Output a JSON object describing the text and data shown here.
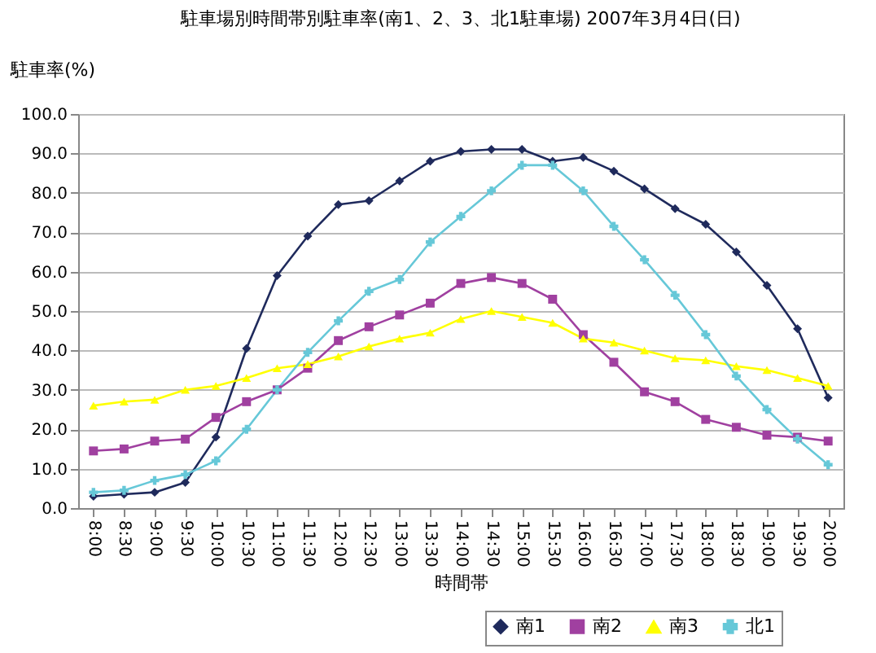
{
  "chart_data": {
    "type": "line",
    "title": "駐車場別時間帯別駐車率(南1、2、3、北1駐車場)  2007年3月4日(日)",
    "xlabel": "時間帯",
    "ylabel": "駐車率(%)",
    "categories": [
      "8:00",
      "8:30",
      "9:00",
      "9:30",
      "10:00",
      "10:30",
      "11:00",
      "11:30",
      "12:00",
      "12:30",
      "13:00",
      "13:30",
      "14:00",
      "14:30",
      "15:00",
      "15:30",
      "16:00",
      "16:30",
      "17:00",
      "17:30",
      "18:00",
      "18:30",
      "19:00",
      "19:30",
      "20:00"
    ],
    "series": [
      {
        "name": "南1",
        "color": "#1f2a5c",
        "marker": "diamond",
        "values": [
          3,
          3.5,
          4,
          6.5,
          18,
          40.5,
          59,
          69,
          77,
          78,
          83,
          88,
          90.5,
          91,
          91,
          88,
          89,
          85.5,
          81,
          76,
          72,
          65,
          56.5,
          45.5,
          28
        ]
      },
      {
        "name": "南2",
        "color": "#a040a0",
        "marker": "square",
        "values": [
          14.5,
          15,
          17,
          17.5,
          23,
          27,
          30,
          35.5,
          42.5,
          46,
          49,
          52,
          57,
          58.5,
          57,
          53,
          44,
          37,
          29.5,
          27,
          22.5,
          20.5,
          18.5,
          18,
          17
        ]
      },
      {
        "name": "南3",
        "color": "#ffff00",
        "marker": "triangle",
        "values": [
          26,
          27,
          27.5,
          30,
          31,
          33,
          35.5,
          36.5,
          38.5,
          41,
          43,
          44.5,
          48,
          50,
          48.5,
          47,
          43,
          42,
          40,
          38,
          37.5,
          36,
          35,
          33,
          31
        ]
      },
      {
        "name": "北1",
        "color": "#66c8d8",
        "marker": "cross",
        "values": [
          4,
          4.5,
          7,
          8.5,
          12,
          20,
          30,
          39.5,
          47.5,
          55,
          58,
          67.5,
          74,
          80.5,
          87,
          87,
          80.5,
          71.5,
          63,
          54,
          44,
          33.5,
          25,
          17.5,
          11
        ]
      }
    ],
    "ylim": [
      0,
      100
    ],
    "yticks": [
      {
        "value": 0,
        "label": "0.0"
      },
      {
        "value": 10,
        "label": "10.0"
      },
      {
        "value": 20,
        "label": "20.0"
      },
      {
        "value": 30,
        "label": "30.0"
      },
      {
        "value": 40,
        "label": "40.0"
      },
      {
        "value": 50,
        "label": "50.0"
      },
      {
        "value": 60,
        "label": "60.0"
      },
      {
        "value": 70,
        "label": "70.0"
      },
      {
        "value": 80,
        "label": "80.0"
      },
      {
        "value": 90,
        "label": "90.0"
      },
      {
        "value": 100,
        "label": "100.0"
      }
    ],
    "grid": "y",
    "legend": "bottom right",
    "line_style": "solid"
  }
}
